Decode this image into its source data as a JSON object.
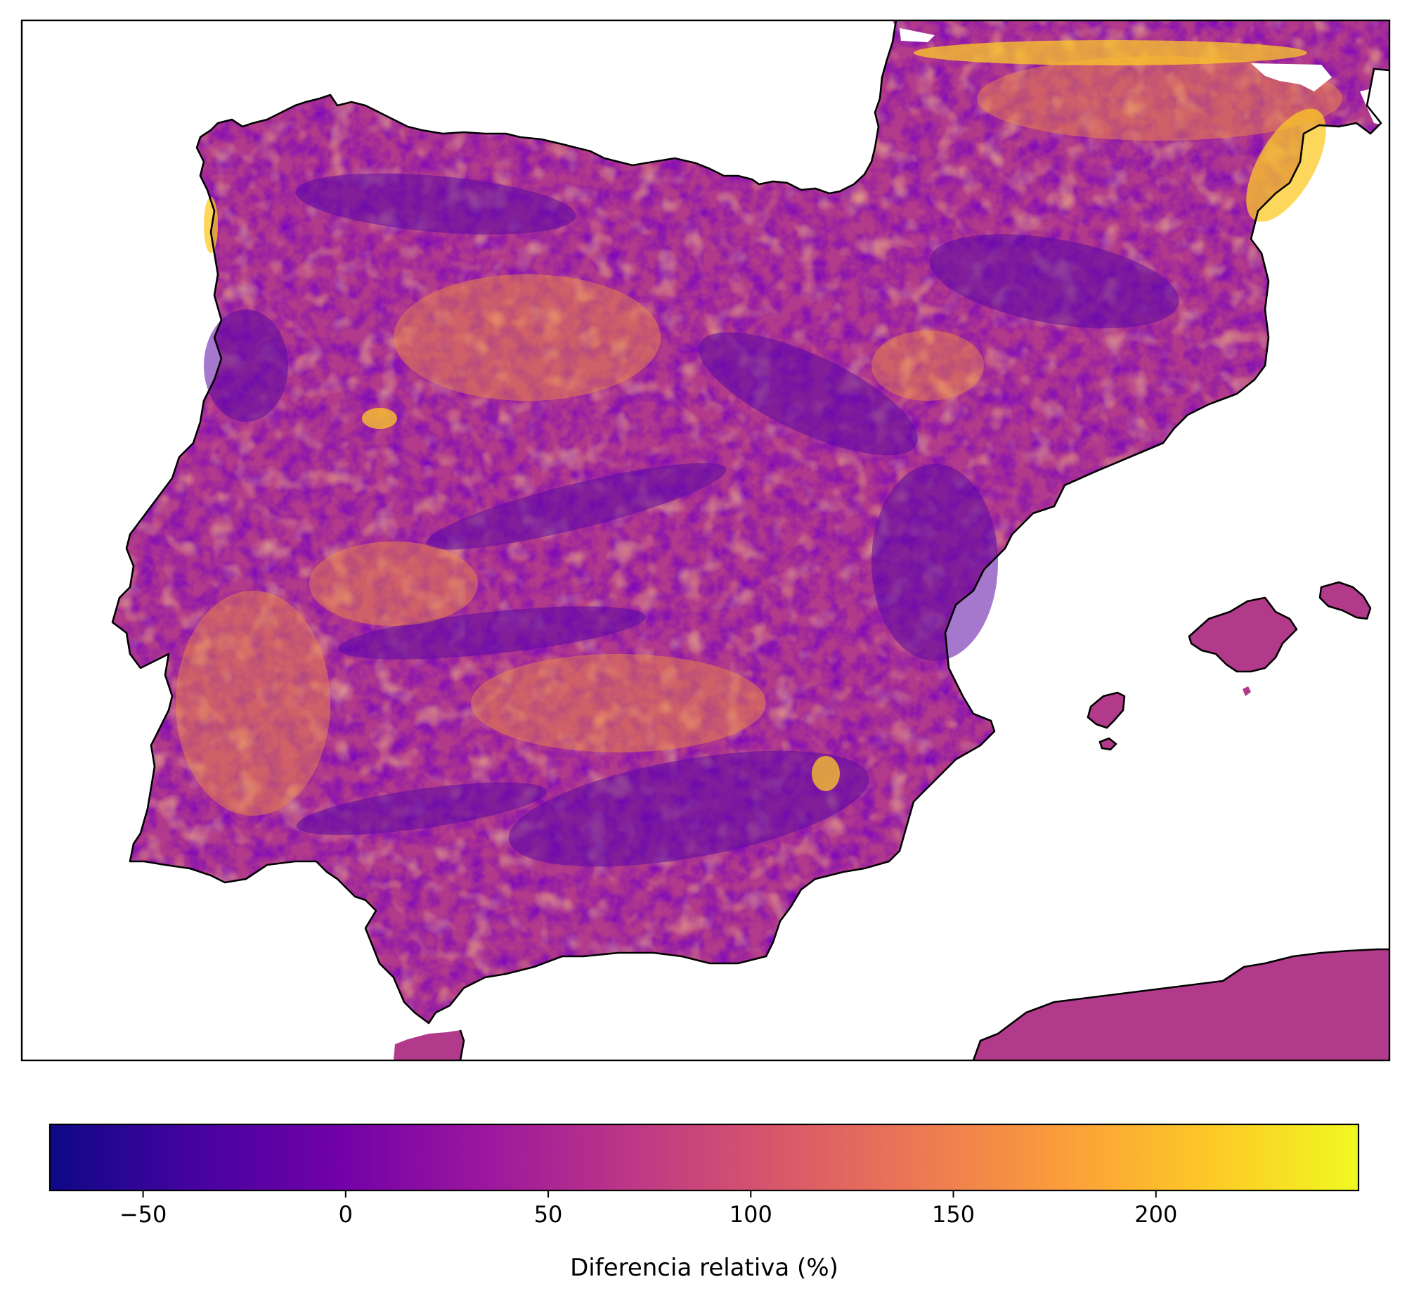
{
  "map": {
    "colormap": "plasma",
    "colormap_stops": [
      "#0d0887",
      "#46039f",
      "#7201a8",
      "#9c179e",
      "#bd3786",
      "#d8576b",
      "#ed7953",
      "#fb9f3a",
      "#fdca26",
      "#f0f921"
    ],
    "frame_color": "#000000",
    "coastline_color": "#000000",
    "background_color": "#ffffff",
    "regions_shown": [
      "Iberian Peninsula",
      "Southern France",
      "Balearic Islands",
      "Northern Africa coast"
    ]
  },
  "colorbar": {
    "label": "Diferencia relativa (%)",
    "range": [
      -73,
      250
    ],
    "ticks": [
      {
        "value": -50,
        "label": "−50"
      },
      {
        "value": 0,
        "label": "0"
      },
      {
        "value": 50,
        "label": "50"
      },
      {
        "value": 100,
        "label": "100"
      },
      {
        "value": 150,
        "label": "150"
      },
      {
        "value": 200,
        "label": "200"
      }
    ]
  }
}
